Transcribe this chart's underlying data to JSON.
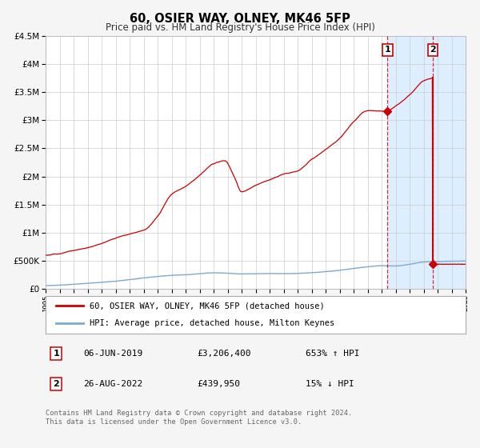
{
  "title": "60, OSIER WAY, OLNEY, MK46 5FP",
  "subtitle": "Price paid vs. HM Land Registry's House Price Index (HPI)",
  "legend_line1": "60, OSIER WAY, OLNEY, MK46 5FP (detached house)",
  "legend_line2": "HPI: Average price, detached house, Milton Keynes",
  "annotation1_date": "06-JUN-2019",
  "annotation1_price": "£3,206,400",
  "annotation1_hpi": "653% ↑ HPI",
  "annotation1_year": 2019.42,
  "annotation2_date": "26-AUG-2022",
  "annotation2_price": "£439,950",
  "annotation2_hpi": "15% ↓ HPI",
  "annotation2_year": 2022.65,
  "annotation2_value": 439950,
  "hpi_color": "#7aaad0",
  "price_color": "#cc0000",
  "bg_color": "#f5f5f5",
  "plot_bg": "#ffffff",
  "grid_color": "#cccccc",
  "shade_color": "#ddeeff",
  "ylim": [
    0,
    4500000
  ],
  "xlim": [
    1995,
    2025
  ],
  "footer": "Contains HM Land Registry data © Crown copyright and database right 2024.\nThis data is licensed under the Open Government Licence v3.0."
}
